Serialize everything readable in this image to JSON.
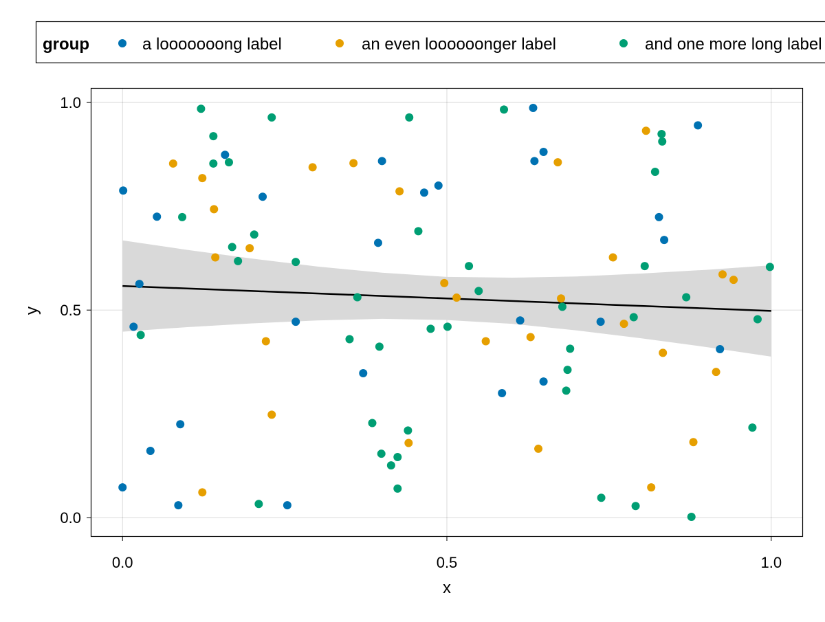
{
  "chart_data": {
    "type": "scatter",
    "title": "",
    "xlabel": "x",
    "ylabel": "y",
    "xlim": [
      -0.049,
      1.049
    ],
    "ylim": [
      -0.046,
      1.035
    ],
    "xticks": [
      0.0,
      0.5,
      1.0
    ],
    "xtick_labels": [
      "0.0",
      "0.5",
      "1.0"
    ],
    "yticks": [
      0.0,
      0.5,
      1.0
    ],
    "ytick_labels": [
      "0.0",
      "0.5",
      "1.0"
    ],
    "grid": true,
    "legend": {
      "title": "group",
      "placement": "top",
      "entries": [
        "a looooooong label",
        "an even loooooonger label",
        "and one more long label"
      ]
    },
    "series": [
      {
        "name": "a looooooong label",
        "color": "#0072b2",
        "x": [
          0.001,
          0.0,
          0.017,
          0.026,
          0.043,
          0.053,
          0.086,
          0.089,
          0.158,
          0.216,
          0.254,
          0.267,
          0.371,
          0.394,
          0.4,
          0.465,
          0.487,
          0.585,
          0.613,
          0.635,
          0.633,
          0.649,
          0.649,
          0.737,
          0.827,
          0.835,
          0.887,
          0.921
        ],
        "y": [
          0.788,
          0.073,
          0.46,
          0.563,
          0.161,
          0.725,
          0.03,
          0.225,
          0.874,
          0.773,
          0.03,
          0.472,
          0.348,
          0.662,
          0.859,
          0.783,
          0.8,
          0.3,
          0.475,
          0.859,
          0.987,
          0.881,
          0.328,
          0.472,
          0.724,
          0.669,
          0.945,
          0.406
        ]
      },
      {
        "name": "an even loooooonger label",
        "color": "#e69f00",
        "x": [
          0.078,
          0.123,
          0.141,
          0.143,
          0.123,
          0.196,
          0.221,
          0.23,
          0.293,
          0.356,
          0.427,
          0.441,
          0.496,
          0.515,
          0.56,
          0.629,
          0.641,
          0.671,
          0.676,
          0.756,
          0.773,
          0.807,
          0.815,
          0.833,
          0.88,
          0.915,
          0.925,
          0.942
        ],
        "y": [
          0.853,
          0.818,
          0.743,
          0.627,
          0.061,
          0.649,
          0.425,
          0.248,
          0.844,
          0.854,
          0.786,
          0.18,
          0.565,
          0.53,
          0.425,
          0.435,
          0.166,
          0.856,
          0.528,
          0.627,
          0.467,
          0.932,
          0.073,
          0.397,
          0.182,
          0.351,
          0.586,
          0.573
        ]
      },
      {
        "name": "and one more long label",
        "color": "#009e73",
        "x": [
          0.121,
          0.14,
          0.14,
          0.164,
          0.092,
          0.028,
          0.169,
          0.178,
          0.203,
          0.21,
          0.23,
          0.267,
          0.35,
          0.362,
          0.385,
          0.396,
          0.399,
          0.414,
          0.424,
          0.424,
          0.44,
          0.442,
          0.456,
          0.475,
          0.501,
          0.534,
          0.549,
          0.588,
          0.678,
          0.684,
          0.686,
          0.69,
          0.738,
          0.788,
          0.791,
          0.805,
          0.821,
          0.831,
          0.832,
          0.869,
          0.877,
          0.971,
          0.979,
          0.998
        ],
        "y": [
          0.985,
          0.919,
          0.853,
          0.856,
          0.724,
          0.44,
          0.652,
          0.618,
          0.682,
          0.033,
          0.964,
          0.616,
          0.43,
          0.531,
          0.228,
          0.412,
          0.154,
          0.126,
          0.146,
          0.07,
          0.21,
          0.964,
          0.69,
          0.455,
          0.46,
          0.606,
          0.546,
          0.983,
          0.508,
          0.306,
          0.356,
          0.407,
          0.048,
          0.483,
          0.028,
          0.606,
          0.833,
          0.924,
          0.906,
          0.531,
          0.002,
          0.217,
          0.478,
          0.604
        ]
      }
    ],
    "regression": {
      "color": "#000000",
      "band_color": "#d9d9d9",
      "x": [
        0,
        0.1,
        0.2,
        0.3,
        0.4,
        0.5,
        0.6,
        0.7,
        0.8,
        0.9,
        1.0
      ],
      "y": [
        0.558,
        0.552,
        0.546,
        0.54,
        0.534,
        0.528,
        0.522,
        0.516,
        0.51,
        0.504,
        0.498
      ],
      "lower": [
        0.448,
        0.459,
        0.468,
        0.475,
        0.479,
        0.476,
        0.467,
        0.451,
        0.432,
        0.411,
        0.388
      ],
      "upper": [
        0.668,
        0.645,
        0.624,
        0.605,
        0.59,
        0.58,
        0.578,
        0.581,
        0.588,
        0.597,
        0.608
      ]
    }
  }
}
